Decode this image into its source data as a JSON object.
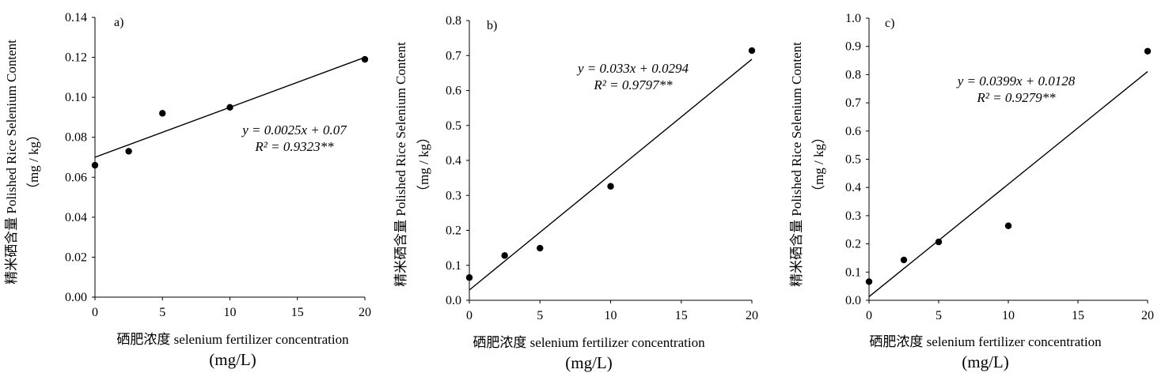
{
  "chart_data": [
    {
      "type": "scatter",
      "panel_label": "a)",
      "x": [
        0,
        2.5,
        5,
        10,
        20
      ],
      "y": [
        0.066,
        0.073,
        0.092,
        0.095,
        0.119
      ],
      "xlim": [
        0,
        20
      ],
      "ylim": [
        0,
        0.14
      ],
      "xticks": [
        "0",
        "5",
        "10",
        "15",
        "20"
      ],
      "yticks": [
        "0.00",
        "0.02",
        "0.04",
        "0.06",
        "0.08",
        "0.10",
        "0.12",
        "0.14"
      ],
      "trend": {
        "slope": 0.0025,
        "intercept": 0.07
      },
      "equation": "y = 0.0025x + 0.07",
      "r2": "R² = 0.9323**",
      "ylabel": "精米硒含量 Polished Rice Selenium Content",
      "yunit": "（mg / kg）",
      "xlabel": "硒肥浓度 selenium fertilizer concentration",
      "xunit": "(mg/L)",
      "grid": false
    },
    {
      "type": "scatter",
      "panel_label": "b)",
      "x": [
        0,
        2.5,
        5,
        10,
        20
      ],
      "y": [
        0.065,
        0.128,
        0.149,
        0.326,
        0.714
      ],
      "xlim": [
        0,
        20
      ],
      "ylim": [
        0,
        0.8
      ],
      "xticks": [
        "0",
        "5",
        "10",
        "15",
        "20"
      ],
      "yticks": [
        "0.0",
        "0.1",
        "0.2",
        "0.3",
        "0.4",
        "0.5",
        "0.6",
        "0.7",
        "0.8"
      ],
      "trend": {
        "slope": 0.033,
        "intercept": 0.0294
      },
      "equation": "y = 0.033x + 0.0294",
      "r2": "R² = 0.9797**",
      "ylabel": "精米硒含量 Polished Rice Selenium Content",
      "yunit": "（mg / kg）",
      "xlabel": "硒肥浓度 selenium fertilizer concentration",
      "xunit": "(mg/L)",
      "grid": false
    },
    {
      "type": "scatter",
      "panel_label": "c)",
      "x": [
        0,
        2.5,
        5,
        10,
        20
      ],
      "y": [
        0.066,
        0.143,
        0.207,
        0.264,
        0.883
      ],
      "xlim": [
        0,
        20
      ],
      "ylim": [
        0,
        1.0
      ],
      "xticks": [
        "0",
        "5",
        "10",
        "15",
        "20"
      ],
      "yticks": [
        "0.0",
        "0.1",
        "0.2",
        "0.3",
        "0.4",
        "0.5",
        "0.6",
        "0.7",
        "0.8",
        "0.9",
        "1.0"
      ],
      "trend": {
        "slope": 0.0399,
        "intercept": 0.0128
      },
      "equation": "y = 0.0399x + 0.0128",
      "r2": "R² = 0.9279**",
      "ylabel": "精米硒含量 Polished Rice Selenium Content",
      "yunit": "（mg / kg）",
      "xlabel": "硒肥浓度 selenium fertilizer concentration",
      "xunit": "(mg/L)",
      "grid": false
    }
  ]
}
